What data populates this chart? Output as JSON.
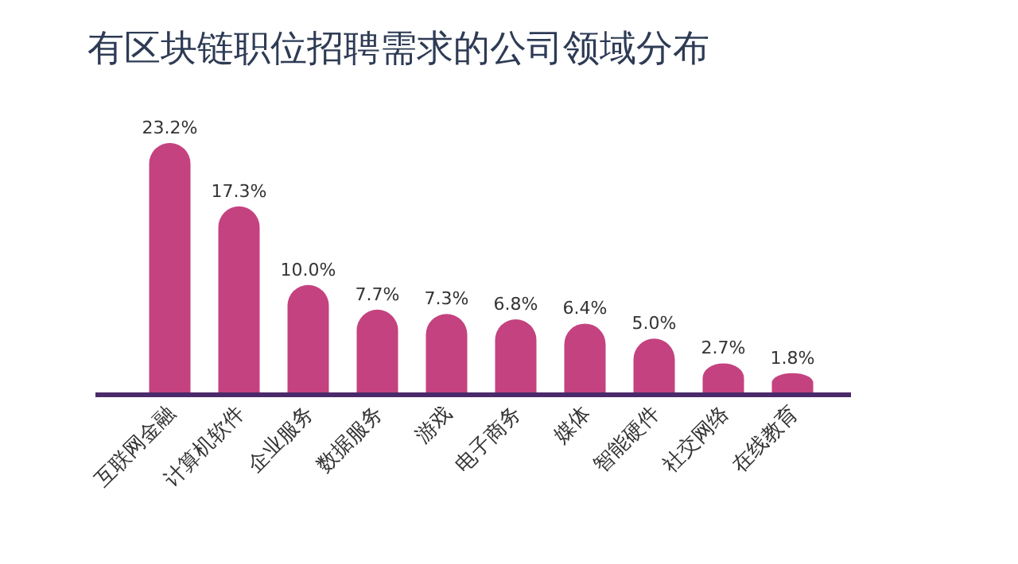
{
  "chart_data": {
    "type": "bar",
    "title": "有区块链职位招聘需求的公司领域分布",
    "categories": [
      "互联网金融",
      "计算机软件",
      "企业服务",
      "数据服务",
      "游戏",
      "电子商务",
      "媒体",
      "智能硬件",
      "社交网络",
      "在线教育"
    ],
    "values": [
      23.2,
      17.3,
      10.0,
      7.7,
      7.3,
      6.8,
      6.4,
      5.0,
      2.7,
      1.8
    ],
    "value_labels": [
      "23.2%",
      "17.3%",
      "10.0%",
      "7.7%",
      "7.3%",
      "6.8%",
      "6.4%",
      "5.0%",
      "2.7%",
      "1.8%"
    ],
    "color": "#c4427f"
  }
}
